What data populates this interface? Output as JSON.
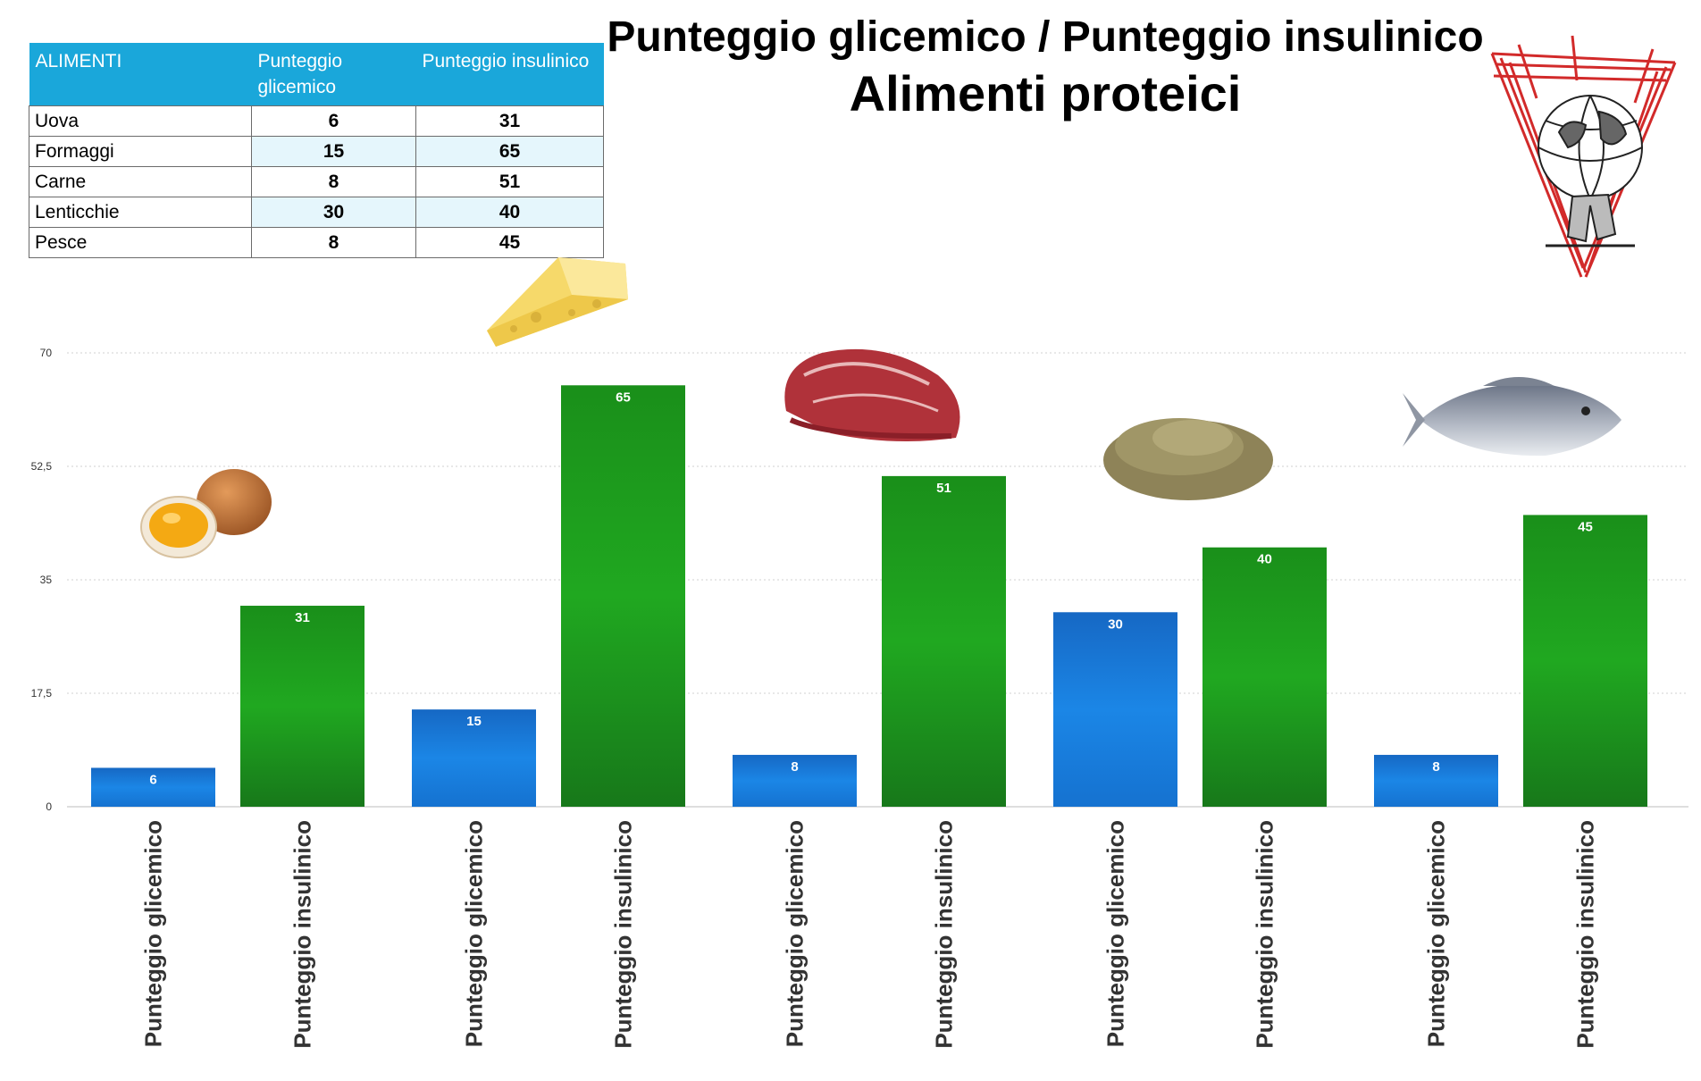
{
  "title": "Punteggio glicemico / Punteggio insulinico",
  "subtitle": "Alimenti proteici",
  "table": {
    "headers": [
      "ALIMENTI",
      "Punteggio glicemico",
      "Punteggio insulinico"
    ],
    "rows": [
      {
        "food": "Uova",
        "glycemic": "6",
        "insulin": "31"
      },
      {
        "food": "Formaggi",
        "glycemic": "15",
        "insulin": "65"
      },
      {
        "food": "Carne",
        "glycemic": "8",
        "insulin": "51"
      },
      {
        "food": "Lenticchie",
        "glycemic": "30",
        "insulin": "40"
      },
      {
        "food": "Pesce",
        "glycemic": "8",
        "insulin": "45"
      }
    ]
  },
  "colors": {
    "glycemic": "#1a7fe0",
    "insulin": "#1f9e1f",
    "header": "#1aa7da",
    "logo": "#d22a2a"
  },
  "images": [
    "egg",
    "cheese",
    "meat",
    "lentils",
    "fish"
  ],
  "chart_data": {
    "type": "bar",
    "categories": [
      "Uova",
      "Formaggi",
      "Carne",
      "Lenticchie",
      "Pesce"
    ],
    "series": [
      {
        "name": "Punteggio glicemico",
        "values": [
          6,
          15,
          8,
          30,
          8
        ]
      },
      {
        "name": "Punteggio insulinico",
        "values": [
          31,
          65,
          51,
          40,
          45
        ]
      }
    ],
    "bar_labels": [
      "Punteggio glicemico",
      "Punteggio insulinico"
    ],
    "ylim": [
      0,
      70
    ],
    "yticks": [
      "0",
      "17,5",
      "35",
      "52,5",
      "70"
    ],
    "grid": true
  }
}
